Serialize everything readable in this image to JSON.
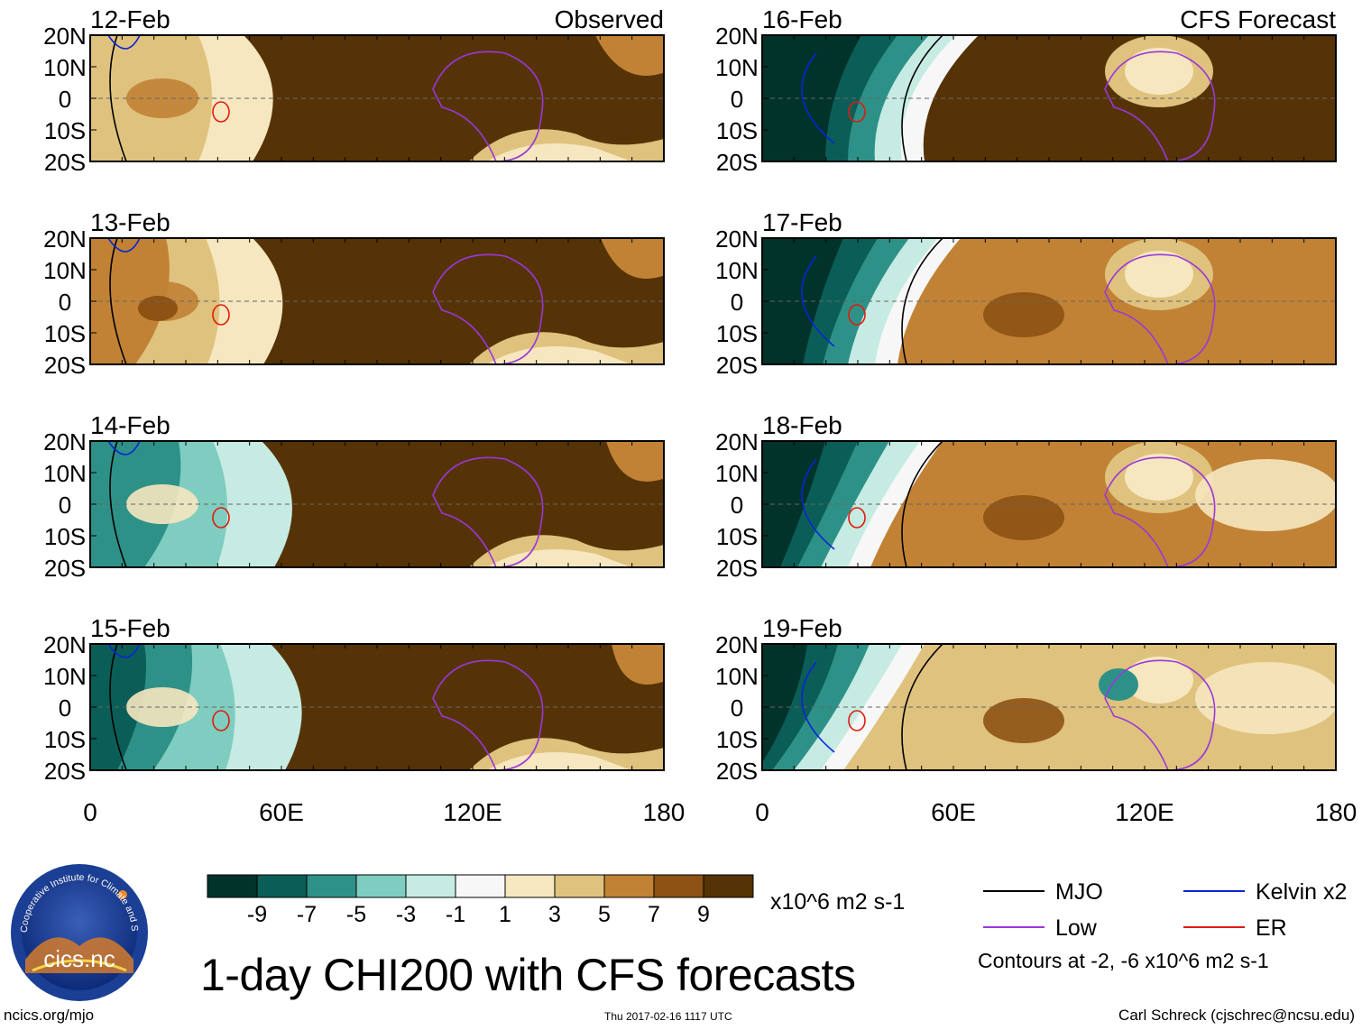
{
  "chart_data": [
    {
      "type": "heatmap",
      "column": "Observed",
      "panels": [
        {
          "date": "12-Feb",
          "label": "Observed"
        },
        {
          "date": "13-Feb",
          "label": ""
        },
        {
          "date": "14-Feb",
          "label": ""
        },
        {
          "date": "15-Feb",
          "label": ""
        }
      ],
      "ylabels": [
        "20N",
        "10N",
        "0",
        "10S",
        "20S"
      ],
      "xlabels": [
        "0",
        "60E",
        "120E",
        "180"
      ],
      "xlim": [
        0,
        180
      ],
      "ylim": [
        -20,
        20
      ]
    },
    {
      "type": "heatmap",
      "column": "CFS Forecast",
      "panels": [
        {
          "date": "16-Feb",
          "label": "CFS Forecast"
        },
        {
          "date": "17-Feb",
          "label": ""
        },
        {
          "date": "18-Feb",
          "label": ""
        },
        {
          "date": "19-Feb",
          "label": ""
        }
      ],
      "ylabels": [
        "20N",
        "10N",
        "0",
        "10S",
        "20S"
      ],
      "xlabels": [
        "0",
        "60E",
        "120E",
        "180"
      ],
      "xlim": [
        0,
        180
      ],
      "ylim": [
        -20,
        20
      ]
    }
  ],
  "colorbar": {
    "colors": [
      "#02332b",
      "#0b5e57",
      "#2e9188",
      "#7fcdc0",
      "#c6ebe3",
      "#f7f7f7",
      "#f6e7c0",
      "#dfc27d",
      "#c18235",
      "#8d5214",
      "#553306"
    ],
    "labels": [
      "-9",
      "-7",
      "-5",
      "-3",
      "-1",
      "1",
      "3",
      "5",
      "7",
      "9"
    ],
    "units": "x10^6 m2 s-1"
  },
  "legend": {
    "items": [
      {
        "name": "MJO",
        "color": "#000000"
      },
      {
        "name": "Kelvin x2",
        "color": "#0a24d8"
      },
      {
        "name": "Low",
        "color": "#9a38d8"
      },
      {
        "name": "ER",
        "color": "#e01a0a"
      }
    ],
    "note": "Contours at -2, -6 x10^6 m2 s-1"
  },
  "title": "1-day CHI200 with CFS forecasts",
  "logo": {
    "name": "cics.nc",
    "arc": "Cooperative Institute for Climate and Satellites"
  },
  "footer": {
    "left": "ncics.org/mjo",
    "center": "Thu 2017-02-16 1117 UTC",
    "right": "Carl Schreck (cjschrec@ncsu.edu)"
  }
}
